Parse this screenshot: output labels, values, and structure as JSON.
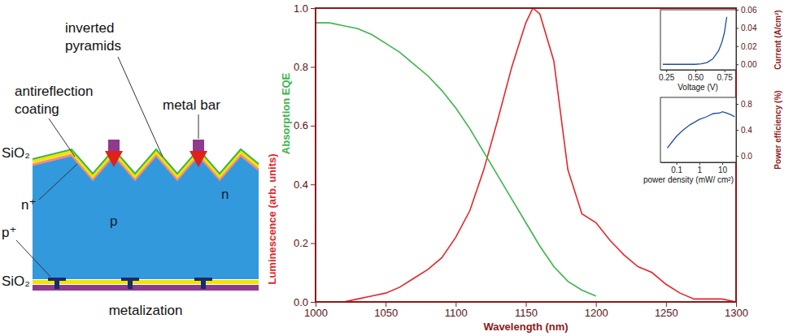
{
  "diagram": {
    "labels": [
      "inverted pyramids",
      "antireflection coating",
      "metal bar",
      "SiO₂",
      "n⁺",
      "p⁺",
      "SiO₂",
      "p",
      "n",
      "metalization"
    ]
  },
  "chart_data": [
    {
      "type": "line",
      "xlabel": "Wavelength (nm)",
      "xlim": [
        1000,
        1300
      ],
      "xticks": [
        1000,
        1050,
        1100,
        1150,
        1200,
        1250,
        1300
      ],
      "ylim": [
        0,
        1
      ],
      "yticks": [
        {
          "value": 0,
          "label": "0.0"
        },
        0.2,
        0.4,
        0.6,
        0.8,
        {
          "value": 1,
          "label": "1.0"
        }
      ],
      "series": [
        {
          "name": "Luminescence (arb. units)",
          "color": "#e3262b",
          "x": [
            1000,
            1010,
            1020,
            1030,
            1040,
            1050,
            1060,
            1070,
            1080,
            1090,
            1100,
            1110,
            1120,
            1130,
            1140,
            1150,
            1155,
            1160,
            1170,
            1180,
            1190,
            1200,
            1210,
            1220,
            1230,
            1240,
            1250,
            1260,
            1270,
            1280,
            1290,
            1300
          ],
          "values": [
            0,
            0,
            0,
            0.01,
            0.02,
            0.03,
            0.05,
            0.08,
            0.11,
            0.15,
            0.22,
            0.31,
            0.45,
            0.62,
            0.8,
            0.95,
            1.0,
            0.98,
            0.82,
            0.45,
            0.3,
            0.27,
            0.21,
            0.16,
            0.12,
            0.1,
            0.06,
            0.03,
            0.01,
            0.01,
            0.01,
            0
          ]
        },
        {
          "name": "Absorption EQE",
          "color": "#3cb44b",
          "x": [
            1000,
            1010,
            1020,
            1030,
            1040,
            1050,
            1060,
            1070,
            1080,
            1090,
            1100,
            1110,
            1120,
            1130,
            1140,
            1150,
            1160,
            1170,
            1180,
            1190,
            1200
          ],
          "values": [
            0.95,
            0.95,
            0.94,
            0.93,
            0.91,
            0.88,
            0.85,
            0.81,
            0.77,
            0.72,
            0.66,
            0.59,
            0.51,
            0.43,
            0.35,
            0.27,
            0.19,
            0.12,
            0.07,
            0.04,
            0.02
          ]
        }
      ]
    },
    {
      "type": "line",
      "xlabel": "Voltage (V)",
      "ylabel": "Current (A/cm²)",
      "xlim": [
        0.2,
        0.85
      ],
      "xticks": [
        {
          "value": 0.25,
          "label": "0.25"
        },
        {
          "value": 0.5,
          "label": "0.50"
        },
        {
          "value": 0.75,
          "label": "0.75"
        }
      ],
      "ylim": [
        -0.006,
        0.06
      ],
      "yticks": [
        {
          "value": 0,
          "label": "0.00"
        },
        {
          "value": 0.02,
          "label": "0.02"
        },
        {
          "value": 0.04,
          "label": "0.04"
        },
        {
          "value": 0.06,
          "label": "0.06"
        }
      ],
      "series": [
        {
          "color": "#1f4e9c",
          "x": [
            0.22,
            0.4,
            0.5,
            0.55,
            0.6,
            0.65,
            0.7,
            0.73,
            0.75,
            0.77
          ],
          "values": [
            0,
            0,
            0,
            0.0005,
            0.002,
            0.006,
            0.015,
            0.025,
            0.035,
            0.052
          ]
        }
      ]
    },
    {
      "type": "line",
      "log": "x",
      "xlabel": "power density (mW/ cm²)",
      "ylabel": "Power efficiency (%)",
      "xlim": [
        0.02,
        40
      ],
      "xticks": [
        0.1,
        1,
        10
      ],
      "ylim": [
        -0.1,
        0.9
      ],
      "yticks": [
        {
          "value": 0,
          "label": "0.0"
        },
        0.4,
        0.8
      ],
      "series": [
        {
          "color": "#1f4e9c",
          "x": [
            0.04,
            0.06,
            0.1,
            0.2,
            0.4,
            1,
            2,
            4,
            8,
            10,
            15,
            25,
            35
          ],
          "values": [
            0.12,
            0.2,
            0.3,
            0.4,
            0.48,
            0.56,
            0.6,
            0.65,
            0.66,
            0.68,
            0.66,
            0.63,
            0.6
          ]
        }
      ]
    }
  ]
}
